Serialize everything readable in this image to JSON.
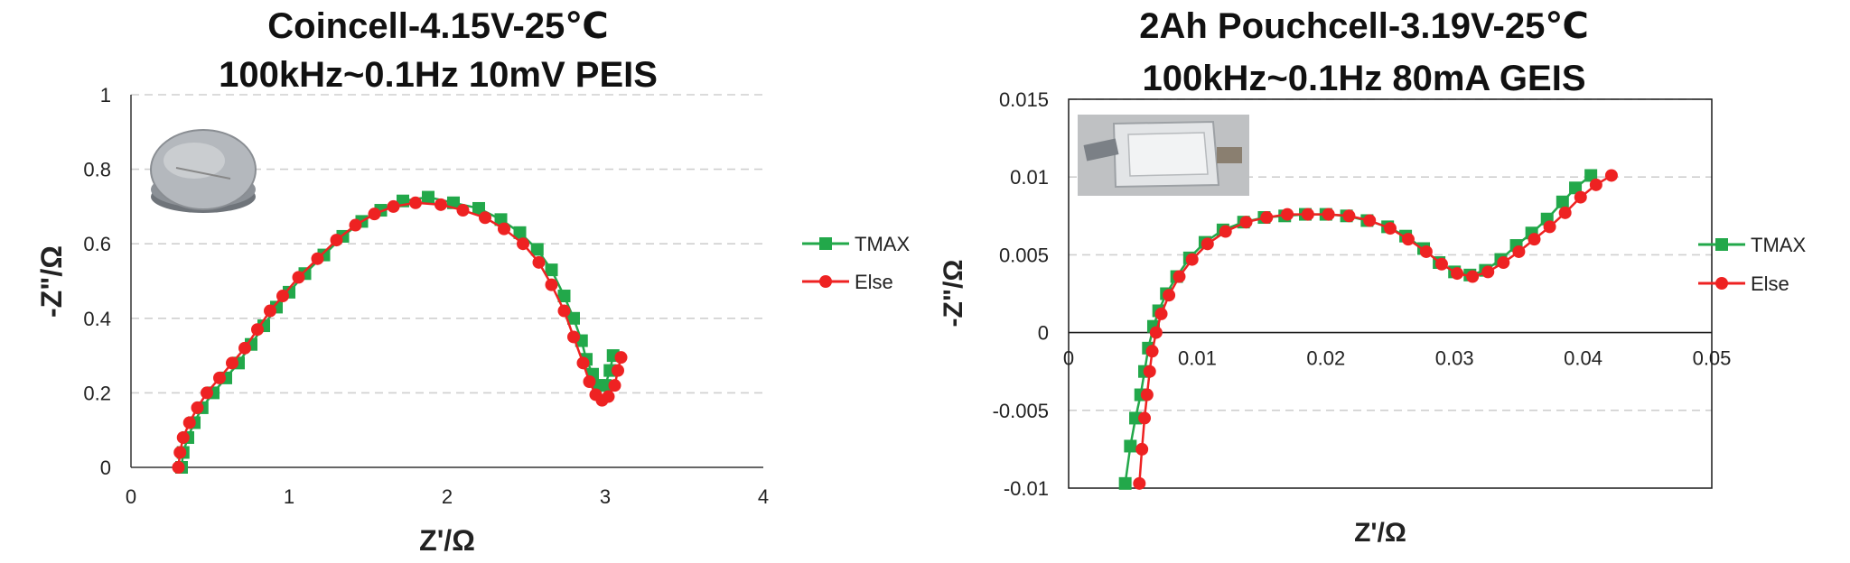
{
  "chart_data": [
    {
      "type": "scatter",
      "title_line1": "Coincell-4.15V-25℃",
      "title_line2": "100kHz~0.1Hz 10mV PEIS",
      "xlabel": "Z'/Ω",
      "ylabel": "-Z\"/Ω",
      "xlim": [
        0,
        4
      ],
      "ylim": [
        0,
        1
      ],
      "x_ticks": [
        "0",
        "1",
        "2",
        "3",
        "4"
      ],
      "y_ticks": [
        "0",
        "0.2",
        "0.4",
        "0.6",
        "0.8",
        "1"
      ],
      "grid": "horizontal dashed",
      "legend_position": "right",
      "photo_description": "coin cell photo",
      "series": [
        {
          "name": "TMAX",
          "color": "#22a84a",
          "marker": "square",
          "points": [
            [
              0.32,
              0.0
            ],
            [
              0.33,
              0.04
            ],
            [
              0.36,
              0.08
            ],
            [
              0.4,
              0.12
            ],
            [
              0.45,
              0.16
            ],
            [
              0.52,
              0.2
            ],
            [
              0.6,
              0.24
            ],
            [
              0.68,
              0.28
            ],
            [
              0.76,
              0.33
            ],
            [
              0.84,
              0.38
            ],
            [
              0.92,
              0.43
            ],
            [
              1.0,
              0.47
            ],
            [
              1.1,
              0.52
            ],
            [
              1.22,
              0.57
            ],
            [
              1.34,
              0.62
            ],
            [
              1.46,
              0.66
            ],
            [
              1.58,
              0.69
            ],
            [
              1.72,
              0.715
            ],
            [
              1.88,
              0.725
            ],
            [
              2.04,
              0.71
            ],
            [
              2.2,
              0.695
            ],
            [
              2.34,
              0.665
            ],
            [
              2.46,
              0.63
            ],
            [
              2.57,
              0.585
            ],
            [
              2.66,
              0.53
            ],
            [
              2.74,
              0.46
            ],
            [
              2.8,
              0.4
            ],
            [
              2.85,
              0.34
            ],
            [
              2.88,
              0.29
            ],
            [
              2.92,
              0.25
            ],
            [
              2.96,
              0.22
            ],
            [
              3.0,
              0.22
            ],
            [
              3.03,
              0.26
            ],
            [
              3.05,
              0.3
            ]
          ]
        },
        {
          "name": "Else",
          "color": "#ee2222",
          "marker": "circle",
          "points": [
            [
              0.3,
              0.0
            ],
            [
              0.31,
              0.04
            ],
            [
              0.33,
              0.08
            ],
            [
              0.37,
              0.12
            ],
            [
              0.42,
              0.16
            ],
            [
              0.48,
              0.2
            ],
            [
              0.56,
              0.24
            ],
            [
              0.64,
              0.28
            ],
            [
              0.72,
              0.32
            ],
            [
              0.8,
              0.37
            ],
            [
              0.88,
              0.42
            ],
            [
              0.96,
              0.46
            ],
            [
              1.06,
              0.51
            ],
            [
              1.18,
              0.56
            ],
            [
              1.3,
              0.61
            ],
            [
              1.42,
              0.65
            ],
            [
              1.54,
              0.68
            ],
            [
              1.66,
              0.7
            ],
            [
              1.8,
              0.71
            ],
            [
              1.96,
              0.705
            ],
            [
              2.1,
              0.69
            ],
            [
              2.24,
              0.67
            ],
            [
              2.36,
              0.64
            ],
            [
              2.48,
              0.6
            ],
            [
              2.58,
              0.55
            ],
            [
              2.66,
              0.49
            ],
            [
              2.74,
              0.42
            ],
            [
              2.8,
              0.35
            ],
            [
              2.86,
              0.28
            ],
            [
              2.9,
              0.23
            ],
            [
              2.94,
              0.195
            ],
            [
              2.98,
              0.18
            ],
            [
              3.02,
              0.19
            ],
            [
              3.06,
              0.22
            ],
            [
              3.08,
              0.26
            ],
            [
              3.1,
              0.295
            ]
          ]
        }
      ]
    },
    {
      "type": "scatter",
      "title_line1": "2Ah Pouchcell-3.19V-25℃",
      "title_line2": "100kHz~0.1Hz 80mA GEIS",
      "xlabel": "Z'/Ω",
      "ylabel": "-Z\"/Ω",
      "xlim": [
        0,
        0.05
      ],
      "ylim": [
        -0.01,
        0.015
      ],
      "x_ticks": [
        "0",
        "0.01",
        "0.02",
        "0.03",
        "0.04",
        "0.05"
      ],
      "y_ticks": [
        "-0.01",
        "-0.005",
        "0",
        "0.005",
        "0.01",
        "0.015"
      ],
      "grid": "horizontal dashed",
      "legend_position": "right",
      "photo_description": "pouch cell photo",
      "series": [
        {
          "name": "TMAX",
          "color": "#22a84a",
          "marker": "square",
          "points": [
            [
              0.0044,
              -0.0097
            ],
            [
              0.0048,
              -0.0073
            ],
            [
              0.0052,
              -0.0055
            ],
            [
              0.0056,
              -0.004
            ],
            [
              0.0059,
              -0.0025
            ],
            [
              0.0062,
              -0.001
            ],
            [
              0.0066,
              0.0004
            ],
            [
              0.007,
              0.0014
            ],
            [
              0.0076,
              0.0025
            ],
            [
              0.0084,
              0.0036
            ],
            [
              0.0094,
              0.0048
            ],
            [
              0.0106,
              0.0058
            ],
            [
              0.012,
              0.0066
            ],
            [
              0.0136,
              0.0071
            ],
            [
              0.0152,
              0.0074
            ],
            [
              0.0168,
              0.0075
            ],
            [
              0.0184,
              0.0076
            ],
            [
              0.02,
              0.0076
            ],
            [
              0.0216,
              0.0075
            ],
            [
              0.0232,
              0.0072
            ],
            [
              0.0248,
              0.0068
            ],
            [
              0.0262,
              0.0062
            ],
            [
              0.0276,
              0.0054
            ],
            [
              0.0288,
              0.0045
            ],
            [
              0.03,
              0.0039
            ],
            [
              0.0312,
              0.0037
            ],
            [
              0.0324,
              0.004
            ],
            [
              0.0336,
              0.0047
            ],
            [
              0.0348,
              0.0056
            ],
            [
              0.036,
              0.0064
            ],
            [
              0.0372,
              0.0073
            ],
            [
              0.0384,
              0.0084
            ],
            [
              0.0394,
              0.0093
            ],
            [
              0.0406,
              0.0101
            ]
          ]
        },
        {
          "name": "Else",
          "color": "#ee2222",
          "marker": "circle",
          "points": [
            [
              0.0055,
              -0.0097
            ],
            [
              0.0057,
              -0.0075
            ],
            [
              0.0059,
              -0.0055
            ],
            [
              0.0061,
              -0.004
            ],
            [
              0.0063,
              -0.0025
            ],
            [
              0.0065,
              -0.0012
            ],
            [
              0.0068,
              0.0
            ],
            [
              0.0072,
              0.0012
            ],
            [
              0.0078,
              0.0024
            ],
            [
              0.0086,
              0.0036
            ],
            [
              0.0096,
              0.0047
            ],
            [
              0.0108,
              0.0057
            ],
            [
              0.0122,
              0.0065
            ],
            [
              0.0138,
              0.0071
            ],
            [
              0.0154,
              0.0074
            ],
            [
              0.017,
              0.0076
            ],
            [
              0.0186,
              0.0076
            ],
            [
              0.0202,
              0.0076
            ],
            [
              0.0218,
              0.0075
            ],
            [
              0.0234,
              0.0072
            ],
            [
              0.025,
              0.0067
            ],
            [
              0.0264,
              0.006
            ],
            [
              0.0278,
              0.0052
            ],
            [
              0.029,
              0.0044
            ],
            [
              0.0302,
              0.0038
            ],
            [
              0.0314,
              0.0036
            ],
            [
              0.0326,
              0.0039
            ],
            [
              0.0338,
              0.0045
            ],
            [
              0.035,
              0.0052
            ],
            [
              0.0362,
              0.006
            ],
            [
              0.0374,
              0.0068
            ],
            [
              0.0386,
              0.0077
            ],
            [
              0.0398,
              0.0087
            ],
            [
              0.041,
              0.0095
            ],
            [
              0.0422,
              0.0101
            ]
          ]
        }
      ]
    }
  ]
}
